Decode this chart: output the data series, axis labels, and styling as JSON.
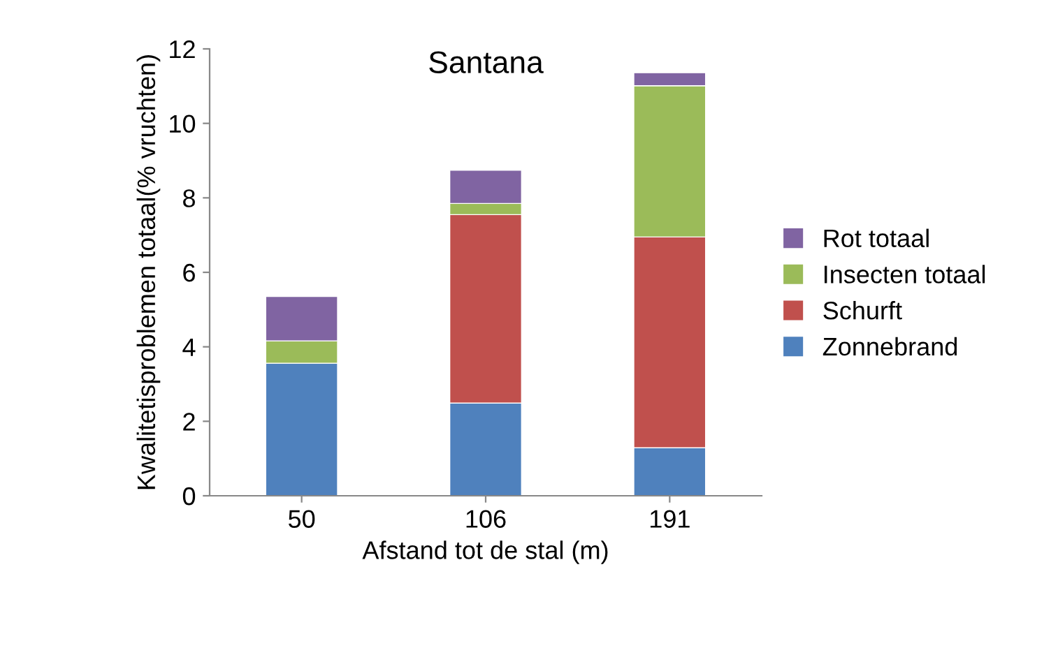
{
  "chart_data": {
    "type": "bar",
    "title": "Santana",
    "xlabel": "Afstand tot de stal (m)",
    "ylabel": "Kwalitetisproblemen totaal(% vruchten)",
    "categories": [
      "50",
      "106",
      "191"
    ],
    "stacked": true,
    "series": [
      {
        "name": "Zonnebrand",
        "color": "#4f81bd",
        "values": [
          3.56,
          2.49,
          1.29
        ]
      },
      {
        "name": "Schurft",
        "color": "#c0504d",
        "values": [
          0,
          5.06,
          5.66
        ]
      },
      {
        "name": "Insecten totaal",
        "color": "#9bbb59",
        "values": [
          0.6,
          0.3,
          4.06
        ]
      },
      {
        "name": "Rot totaal",
        "color": "#8064a2",
        "values": [
          1.19,
          0.89,
          0.35
        ]
      }
    ],
    "ylim": [
      0,
      12
    ],
    "yticks": [
      0,
      2,
      4,
      6,
      8,
      10,
      12
    ],
    "grid": false,
    "legend": "right"
  }
}
